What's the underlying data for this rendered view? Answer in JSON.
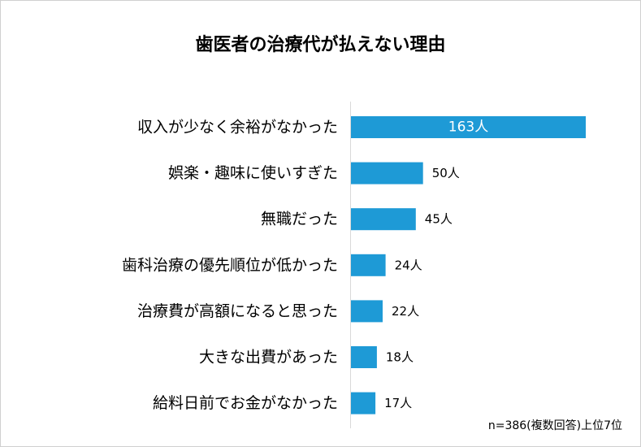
{
  "chart_data": {
    "type": "bar",
    "orientation": "horizontal",
    "title": "歯医者の治療代が払えない理由",
    "categories": [
      "収入が少なく余裕がなかった",
      "娯楽・趣味に使いすぎた",
      "無職だった",
      "歯科治療の優先順位が低かった",
      "治療費が高額になると思った",
      "大きな出費があった",
      "給料日前でお金がなかった"
    ],
    "values": [
      163,
      50,
      45,
      24,
      22,
      18,
      17
    ],
    "value_labels": [
      "163人",
      "50人",
      "45人",
      "24人",
      "22人",
      "18人",
      "17人"
    ],
    "unit": "人",
    "xlim": [
      0,
      163
    ],
    "xlabel": "",
    "ylabel": "",
    "grid": false,
    "legend": "none",
    "bar_color": "#1e9ad6",
    "note": "n=386(複数回答)上位7位"
  }
}
